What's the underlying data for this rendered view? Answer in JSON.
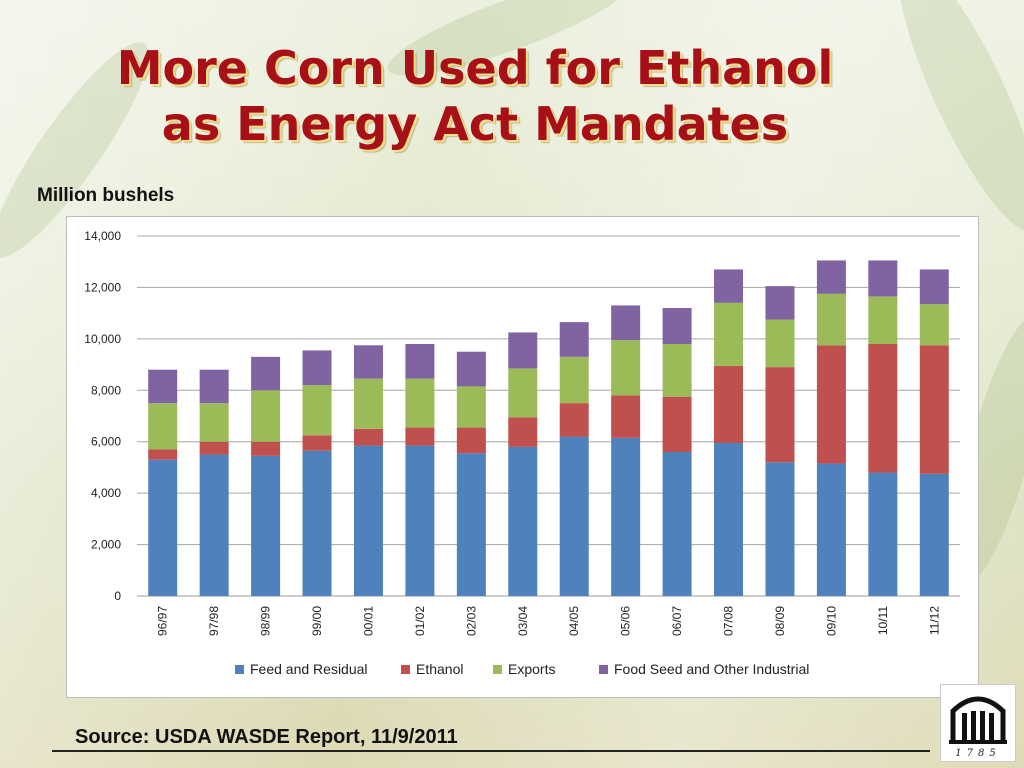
{
  "slide": {
    "title_line1": "More Corn Used for Ethanol",
    "title_line2": "as Energy Act Mandates",
    "unit_label": "Million bushels",
    "source": "Source: USDA WASDE Report, 11/9/2011",
    "logo_text": "1785",
    "title_color": "#a61016"
  },
  "chart_data": {
    "type": "bar",
    "stacked": true,
    "categories": [
      "96/97",
      "97/98",
      "98/99",
      "99/00",
      "00/01",
      "01/02",
      "02/03",
      "03/04",
      "04/05",
      "05/06",
      "06/07",
      "07/08",
      "08/09",
      "09/10",
      "10/11",
      "11/12"
    ],
    "series": [
      {
        "name": "Feed and Residual",
        "color": "#4f81bd",
        "values": [
          5300,
          5500,
          5450,
          5650,
          5850,
          5850,
          5550,
          5800,
          6200,
          6150,
          5600,
          5950,
          5200,
          5150,
          4800,
          4750
        ]
      },
      {
        "name": "Ethanol",
        "color": "#c0504d",
        "values": [
          400,
          500,
          550,
          600,
          650,
          700,
          1000,
          1150,
          1300,
          1650,
          2150,
          3000,
          3700,
          4600,
          5000,
          5000
        ]
      },
      {
        "name": "Exports",
        "color": "#9bbb59",
        "values": [
          1800,
          1500,
          2000,
          1950,
          1950,
          1900,
          1600,
          1900,
          1800,
          2150,
          2050,
          2450,
          1850,
          2000,
          1850,
          1600
        ]
      },
      {
        "name": "Food Seed and Other Industrial",
        "color": "#8064a2",
        "values": [
          1300,
          1300,
          1300,
          1350,
          1300,
          1350,
          1350,
          1400,
          1350,
          1350,
          1400,
          1300,
          1300,
          1300,
          1400,
          1350
        ]
      }
    ],
    "y_ticks": [
      "0",
      "2,000",
      "4,000",
      "6,000",
      "8,000",
      "10,000",
      "12,000",
      "14,000"
    ],
    "ylim": [
      0,
      14000
    ],
    "grid": true,
    "legend_position": "bottom"
  }
}
